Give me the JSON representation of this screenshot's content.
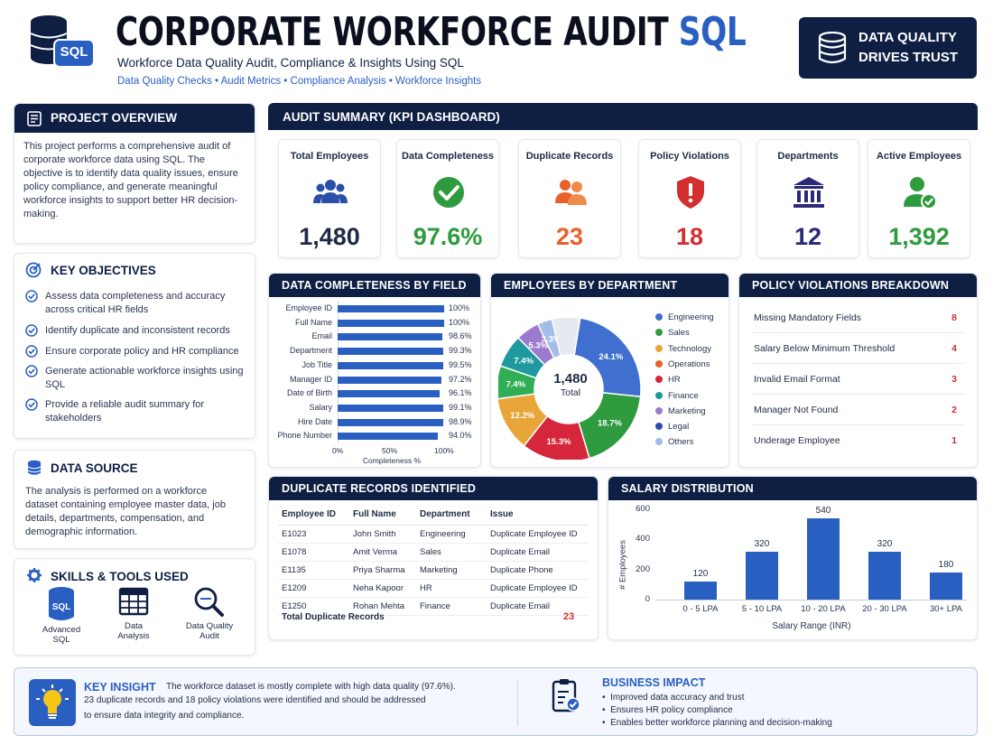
{
  "header": {
    "title_main": "CORPORATE WORKFORCE AUDIT",
    "title_accent": "SQL",
    "subtitle": "Workforce Data Quality Audit, Compliance & Insights Using SQL",
    "tags": [
      "Data Quality Checks",
      "Audit Metrics",
      "Compliance Analysis",
      "Workforce Insights"
    ],
    "logo_label": "SQL",
    "badge_line1": "DATA QUALITY",
    "badge_line2": "DRIVES TRUST"
  },
  "overview": {
    "title": "PROJECT OVERVIEW",
    "text": "This project performs a comprehensive audit of corporate workforce data using SQL. The objective is to identify data quality issues, ensure policy compliance, and generate meaningful workforce insights to support better HR decision-making."
  },
  "objectives": {
    "title": "KEY OBJECTIVES",
    "items": [
      "Assess data completeness and accuracy across critical HR fields",
      "Identify duplicate and inconsistent records",
      "Ensure corporate policy and HR compliance",
      "Generate actionable workforce insights using SQL",
      "Provide a reliable audit summary for stakeholders"
    ]
  },
  "datasource": {
    "title": "DATA SOURCE",
    "text": "The analysis is performed on a workforce dataset containing employee master data, job details, departments, compensation, and demographic information."
  },
  "tools": {
    "title": "SKILLS & TOOLS USED",
    "items": [
      {
        "line1": "Advanced",
        "line2": "SQL",
        "icon": "database-sql-icon"
      },
      {
        "line1": "Data",
        "line2": "Analysis",
        "icon": "table-icon"
      },
      {
        "line1": "Data Quality",
        "line2": "Audit",
        "icon": "magnifier-icon"
      }
    ]
  },
  "kpi": {
    "title": "AUDIT SUMMARY (KPI DASHBOARD)",
    "cards": [
      {
        "label": "Total Employees",
        "value": "1,480",
        "color": "#1f2a44",
        "icon": "people-icon"
      },
      {
        "label": "Data Completeness",
        "value": "97.6%",
        "color": "#2e9b3e",
        "icon": "check-circle-icon"
      },
      {
        "label": "Duplicate Records",
        "value": "23",
        "color": "#e8612c",
        "icon": "duplicate-users-icon"
      },
      {
        "label": "Policy Violations",
        "value": "18",
        "color": "#d32f2f",
        "icon": "shield-alert-icon"
      },
      {
        "label": "Departments",
        "value": "12",
        "color": "#2b2a7a",
        "icon": "building-icon"
      },
      {
        "label": "Active Employees",
        "value": "1,392",
        "color": "#2e9b3e",
        "icon": "user-check-icon"
      }
    ]
  },
  "chart_data": [
    {
      "type": "bar",
      "orientation": "horizontal",
      "title": "DATA COMPLETENESS BY FIELD",
      "categories": [
        "Employee ID",
        "Full Name",
        "Email",
        "Department",
        "Job Title",
        "Manager ID",
        "Date of Birth",
        "Salary",
        "Hire Date",
        "Phone Number"
      ],
      "values": [
        100,
        100,
        98.6,
        99.3,
        99.5,
        97.2,
        96.1,
        99.1,
        98.9,
        94.0
      ],
      "value_labels": [
        "100%",
        "100%",
        "98.6%",
        "99.3%",
        "99.5%",
        "97.2%",
        "96.1%",
        "99.1%",
        "98.9%",
        "94.0%"
      ],
      "xlabel": "Completeness %",
      "xticks": [
        "0%",
        "50%",
        "100%"
      ],
      "xlim": [
        0,
        100
      ],
      "color": "#2a5fc2"
    },
    {
      "type": "pie",
      "donut": true,
      "title": "EMPLOYEES BY DEPARTMENT",
      "center_value": "1,480",
      "center_label": "Total",
      "categories": [
        "Engineering",
        "Sales",
        "Technology",
        "Operations",
        "HR",
        "Finance",
        "Marketing",
        "Legal",
        "Others"
      ],
      "values": [
        24.1,
        18.7,
        15.3,
        12.2,
        7.4,
        7.4,
        5.3,
        3.3,
        6.3
      ],
      "slice_labels": [
        "24.1%",
        "18.7%",
        "15.3%",
        "12.2%",
        "7.4%",
        "7.4%",
        "5.3%",
        "3.3%",
        ""
      ],
      "colors": [
        "#3f6fcf",
        "#2e9b3e",
        "#d6263c",
        "#e8a63a",
        "#2fae56",
        "#1e9a9f",
        "#9b7bcf",
        "#a3bde6",
        "#e6e9f0"
      ],
      "legend_colors": [
        "#3f6fcf",
        "#2e9b3e",
        "#e8a63a",
        "#e8612c",
        "#d6263c",
        "#1e9a9f",
        "#9b7bcf",
        "#2b4fa8",
        "#a3bde6"
      ],
      "legend_position": "right"
    },
    {
      "type": "bar",
      "title": "SALARY DISTRIBUTION",
      "categories": [
        "0 - 5 LPA",
        "5 - 10 LPA",
        "10 - 20 LPA",
        "20 - 30 LPA",
        "30+ LPA"
      ],
      "values": [
        120,
        320,
        540,
        320,
        180
      ],
      "xlabel": "Salary Range (INR)",
      "ylabel": "# Employees",
      "yticks": [
        "600",
        "400",
        "200",
        "0"
      ],
      "ylim": [
        0,
        600
      ],
      "color": "#2a5fc2"
    }
  ],
  "violations": {
    "title": "POLICY VIOLATIONS BREAKDOWN",
    "rows": [
      {
        "label": "Missing Mandatory Fields",
        "count": "8"
      },
      {
        "label": "Salary Below Minimum Threshold",
        "count": "4"
      },
      {
        "label": "Invalid Email Format",
        "count": "3"
      },
      {
        "label": "Manager Not Found",
        "count": "2"
      },
      {
        "label": "Underage Employee",
        "count": "1"
      }
    ]
  },
  "duplicates": {
    "title": "DUPLICATE RECORDS IDENTIFIED",
    "headers": [
      "Employee ID",
      "Full Name",
      "Department",
      "Issue"
    ],
    "rows": [
      [
        "E1023",
        "John Smith",
        "Engineering",
        "Duplicate Employee ID"
      ],
      [
        "E1078",
        "Amit Verma",
        "Sales",
        "Duplicate Email"
      ],
      [
        "E1135",
        "Priya Sharma",
        "Marketing",
        "Duplicate Phone"
      ],
      [
        "E1209",
        "Neha Kapoor",
        "HR",
        "Duplicate Employee ID"
      ],
      [
        "E1250",
        "Rohan Mehta",
        "Finance",
        "Duplicate Email"
      ]
    ],
    "total_label": "Total Duplicate Records",
    "total_value": "23"
  },
  "insight": {
    "title": "KEY INSIGHT",
    "text1": "The workforce dataset is mostly complete with high data quality (97.6%).",
    "text2": "23 duplicate records and 18 policy violations were identified and should be addressed",
    "text3": "to ensure data integrity and compliance."
  },
  "impact": {
    "title": "BUSINESS IMPACT",
    "items": [
      "Improved data accuracy and trust",
      "Ensures HR policy compliance",
      "Enables better workforce planning and decision-making"
    ]
  }
}
